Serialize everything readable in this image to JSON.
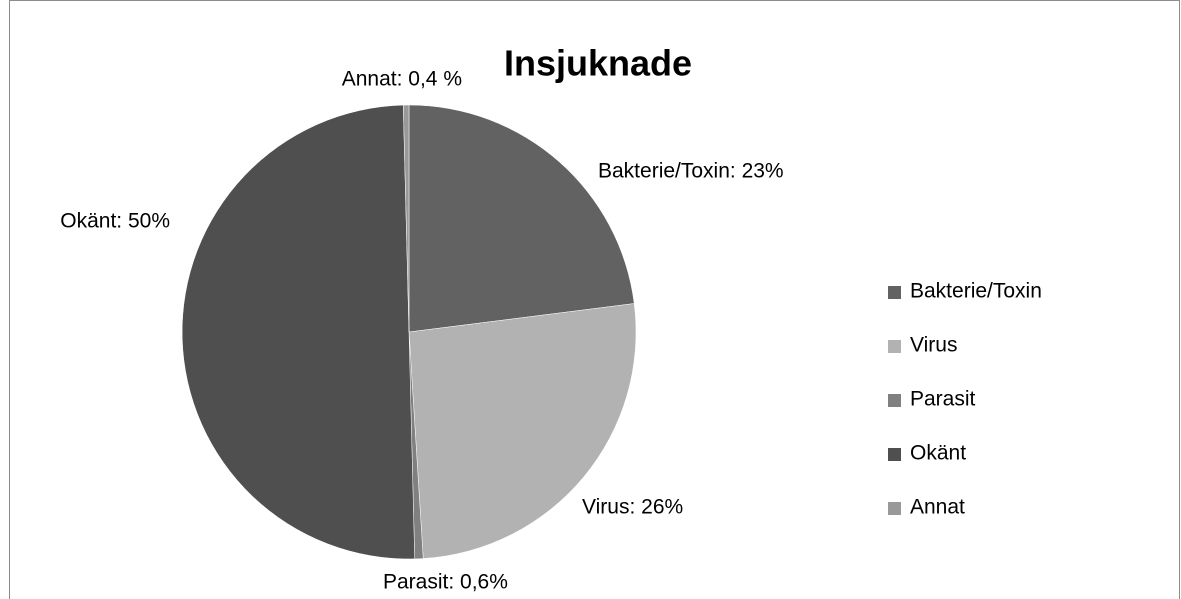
{
  "chart_data": {
    "type": "pie",
    "title": "Insjuknade",
    "categories": [
      "Bakterie/Toxin",
      "Virus",
      "Parasit",
      "Okänt",
      "Annat"
    ],
    "values": [
      23,
      26,
      0.6,
      50,
      0.4
    ],
    "value_labels": [
      "Bakterie/Toxin: 23%",
      "Virus: 26%",
      "Parasit: 0,6%",
      "Okänt: 50%",
      "Annat: 0,4 %"
    ],
    "colors": [
      "#626262",
      "#b2b2b2",
      "#808080",
      "#4f4f4f",
      "#999999"
    ],
    "legend": "right"
  }
}
